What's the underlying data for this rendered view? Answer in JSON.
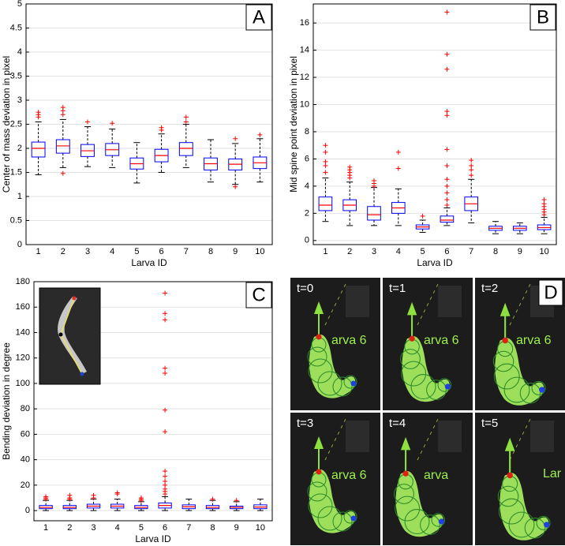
{
  "chart_data": [
    {
      "type": "box",
      "panel_label": "A",
      "ylabel": "Center of mass deviation in pixel",
      "xlabel": "Larva ID",
      "categories": [
        "1",
        "2",
        "3",
        "4",
        "5",
        "6",
        "7",
        "8",
        "9",
        "10"
      ],
      "ylim": [
        0,
        5
      ],
      "yticks": [
        0,
        0.5,
        1,
        1.5,
        2,
        2.5,
        3,
        3.5,
        4,
        4.5,
        5
      ],
      "grid": true,
      "box_color": "#0000ff",
      "median_color": "#ff0000",
      "flier_color": "#ff0000",
      "boxes": [
        {
          "whislo": 1.45,
          "q1": 1.82,
          "med": 2.0,
          "q3": 2.13,
          "whishi": 2.55,
          "fliers": [
            2.65,
            2.7,
            2.75
          ]
        },
        {
          "whislo": 1.6,
          "q1": 1.9,
          "med": 2.05,
          "q3": 2.18,
          "whishi": 2.6,
          "fliers": [
            2.7,
            2.78,
            2.85,
            1.48
          ]
        },
        {
          "whislo": 1.62,
          "q1": 1.83,
          "med": 1.95,
          "q3": 2.08,
          "whishi": 2.45,
          "fliers": [
            2.55
          ]
        },
        {
          "whislo": 1.6,
          "q1": 1.85,
          "med": 1.97,
          "q3": 2.1,
          "whishi": 2.4,
          "fliers": [
            2.52
          ]
        },
        {
          "whislo": 1.28,
          "q1": 1.57,
          "med": 1.68,
          "q3": 1.8,
          "whishi": 2.12,
          "fliers": []
        },
        {
          "whislo": 1.5,
          "q1": 1.72,
          "med": 1.85,
          "q3": 1.98,
          "whishi": 2.3,
          "fliers": [
            2.38,
            2.43
          ]
        },
        {
          "whislo": 1.6,
          "q1": 1.85,
          "med": 2.0,
          "q3": 2.12,
          "whishi": 2.5,
          "fliers": [
            2.55,
            2.65
          ]
        },
        {
          "whislo": 1.3,
          "q1": 1.55,
          "med": 1.68,
          "q3": 1.8,
          "whishi": 2.18,
          "fliers": []
        },
        {
          "whislo": 1.25,
          "q1": 1.55,
          "med": 1.67,
          "q3": 1.78,
          "whishi": 2.1,
          "fliers": [
            2.2,
            1.2
          ]
        },
        {
          "whislo": 1.3,
          "q1": 1.58,
          "med": 1.7,
          "q3": 1.82,
          "whishi": 2.2,
          "fliers": [
            2.28
          ]
        }
      ]
    },
    {
      "type": "box",
      "panel_label": "B",
      "ylabel": "Mid spine point deviation in pixel",
      "xlabel": "Larva ID",
      "categories": [
        "1",
        "2",
        "3",
        "4",
        "5",
        "6",
        "7",
        "8",
        "9",
        "10"
      ],
      "ylim": [
        -0.3,
        17.4
      ],
      "yticks": [
        0,
        2,
        4,
        6,
        8,
        10,
        12,
        14,
        16
      ],
      "grid": true,
      "box_color": "#0000ff",
      "median_color": "#ff0000",
      "flier_color": "#ff0000",
      "boxes": [
        {
          "whislo": 1.4,
          "q1": 2.2,
          "med": 2.6,
          "q3": 3.2,
          "whishi": 4.6,
          "fliers": [
            5,
            5.5,
            5.8,
            6.5,
            7
          ]
        },
        {
          "whislo": 1.1,
          "q1": 2.2,
          "med": 2.6,
          "q3": 3.0,
          "whishi": 4.3,
          "fliers": [
            4.6,
            4.8,
            5,
            5.2,
            5.4
          ]
        },
        {
          "whislo": 1.1,
          "q1": 1.5,
          "med": 1.9,
          "q3": 2.5,
          "whishi": 3.9,
          "fliers": [
            4.0,
            4.2,
            4.4
          ]
        },
        {
          "whislo": 1.1,
          "q1": 2.0,
          "med": 2.4,
          "q3": 2.8,
          "whishi": 3.8,
          "fliers": [
            5.3,
            6.5
          ]
        },
        {
          "whislo": 0.6,
          "q1": 0.85,
          "med": 1.0,
          "q3": 1.15,
          "whishi": 1.5,
          "fliers": [
            1.8
          ]
        },
        {
          "whislo": 1.1,
          "q1": 1.35,
          "med": 1.5,
          "q3": 1.8,
          "whishi": 2.4,
          "fliers": [
            2.6,
            3,
            3.5,
            4,
            4.5,
            5.5,
            6.7,
            9.2,
            9.5,
            12.6,
            13.7,
            16.8
          ]
        },
        {
          "whislo": 1.3,
          "q1": 2.2,
          "med": 2.7,
          "q3": 3.2,
          "whishi": 4.5,
          "fliers": [
            4.8,
            5.2,
            5.5,
            5.9
          ]
        },
        {
          "whislo": 0.5,
          "q1": 0.75,
          "med": 0.9,
          "q3": 1.05,
          "whishi": 1.4,
          "fliers": []
        },
        {
          "whislo": 0.5,
          "q1": 0.75,
          "med": 0.9,
          "q3": 1.05,
          "whishi": 1.3,
          "fliers": []
        },
        {
          "whislo": 0.5,
          "q1": 0.8,
          "med": 0.95,
          "q3": 1.15,
          "whishi": 1.7,
          "fliers": [
            1.9,
            2.1,
            2.3,
            2.5,
            2.7,
            3.0
          ]
        }
      ]
    },
    {
      "type": "box",
      "panel_label": "C",
      "ylabel": "Bending deviation in degree",
      "xlabel": "Larva ID",
      "categories": [
        "1",
        "2",
        "3",
        "4",
        "5",
        "6",
        "7",
        "8",
        "9",
        "10"
      ],
      "ylim": [
        -8,
        180
      ],
      "yticks": [
        0,
        20,
        40,
        60,
        80,
        100,
        120,
        140,
        160,
        180
      ],
      "grid": true,
      "box_color": "#0000ff",
      "median_color": "#ff0000",
      "flier_color": "#ff0000",
      "boxes": [
        {
          "whislo": 0,
          "q1": 1.5,
          "med": 2.5,
          "q3": 4,
          "whishi": 8,
          "fliers": [
            9,
            10,
            11
          ]
        },
        {
          "whislo": 0,
          "q1": 1.5,
          "med": 2.5,
          "q3": 4,
          "whishi": 8,
          "fliers": [
            9,
            10,
            12
          ]
        },
        {
          "whislo": 0,
          "q1": 2,
          "med": 3.5,
          "q3": 5,
          "whishi": 9,
          "fliers": [
            10,
            12
          ]
        },
        {
          "whislo": 0,
          "q1": 2,
          "med": 3.5,
          "q3": 5,
          "whishi": 9,
          "fliers": [
            13,
            14
          ]
        },
        {
          "whislo": 0,
          "q1": 1.5,
          "med": 2.5,
          "q3": 4,
          "whishi": 7,
          "fliers": [
            8,
            9,
            10
          ]
        },
        {
          "whislo": 0,
          "q1": 2,
          "med": 4,
          "q3": 6,
          "whishi": 11,
          "fliers": [
            13,
            15,
            17,
            20,
            23,
            27,
            31,
            62,
            79,
            108,
            112,
            150,
            155,
            171
          ]
        },
        {
          "whislo": 0,
          "q1": 1.5,
          "med": 3,
          "q3": 4.5,
          "whishi": 9,
          "fliers": []
        },
        {
          "whislo": 0,
          "q1": 1.5,
          "med": 2.5,
          "q3": 4,
          "whishi": 8,
          "fliers": [
            9
          ]
        },
        {
          "whislo": 0,
          "q1": 1.5,
          "med": 2.5,
          "q3": 3.5,
          "whishi": 7,
          "fliers": [
            8
          ]
        },
        {
          "whislo": 0,
          "q1": 1.5,
          "med": 2.8,
          "q3": 4.5,
          "whishi": 9,
          "fliers": []
        }
      ]
    }
  ],
  "image_panel": {
    "panel_label": "D",
    "frames": [
      {
        "time": "t=0",
        "label": "arva 6"
      },
      {
        "time": "t=1",
        "label": "arva 6"
      },
      {
        "time": "t=2",
        "label": "arva 6"
      },
      {
        "time": "t=3",
        "label": "arva 6"
      },
      {
        "time": "t=4",
        "label": "arva"
      },
      {
        "time": "t=5",
        "label": "Lar"
      }
    ]
  }
}
